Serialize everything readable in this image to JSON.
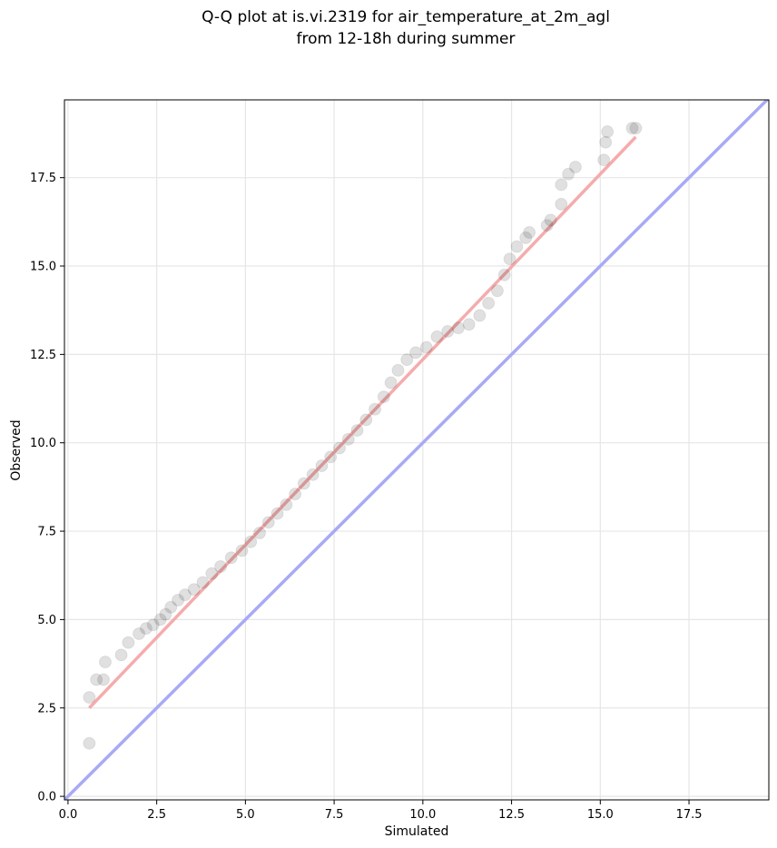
{
  "chart_data": {
    "type": "scatter",
    "title_line1": "Q-Q plot at is.vi.2319 for air_temperature_at_2m_agl",
    "title_line2": "from 12-18h during summer",
    "xlabel": "Simulated",
    "ylabel": "Observed",
    "xlim": [
      -0.1,
      19.75
    ],
    "ylim": [
      -0.1,
      19.7
    ],
    "x_ticks": [
      0.0,
      2.5,
      5.0,
      7.5,
      10.0,
      12.5,
      15.0,
      17.5
    ],
    "x_tick_labels": [
      "0.0",
      "2.5",
      "5.0",
      "7.5",
      "10.0",
      "12.5",
      "15.0",
      "17.5"
    ],
    "y_ticks": [
      0.0,
      2.5,
      5.0,
      7.5,
      10.0,
      12.5,
      15.0,
      17.5
    ],
    "y_tick_labels": [
      "0.0",
      "2.5",
      "5.0",
      "7.5",
      "10.0",
      "12.5",
      "15.0",
      "17.5"
    ],
    "grid": true,
    "series": [
      {
        "kind": "quantile_points",
        "color": "#000000",
        "points": [
          [
            0.6,
            1.5
          ],
          [
            0.6,
            2.8
          ],
          [
            0.8,
            3.3
          ],
          [
            1.0,
            3.3
          ],
          [
            1.05,
            3.8
          ],
          [
            1.5,
            4.0
          ],
          [
            1.7,
            4.35
          ],
          [
            2.0,
            4.6
          ],
          [
            2.2,
            4.75
          ],
          [
            2.4,
            4.85
          ],
          [
            2.6,
            5.0
          ],
          [
            2.75,
            5.15
          ],
          [
            2.9,
            5.35
          ],
          [
            3.1,
            5.55
          ],
          [
            3.3,
            5.7
          ],
          [
            3.55,
            5.85
          ],
          [
            3.8,
            6.05
          ],
          [
            4.05,
            6.3
          ],
          [
            4.3,
            6.5
          ],
          [
            4.6,
            6.75
          ],
          [
            4.9,
            6.95
          ],
          [
            5.15,
            7.2
          ],
          [
            5.4,
            7.45
          ],
          [
            5.65,
            7.75
          ],
          [
            5.9,
            8.0
          ],
          [
            6.15,
            8.25
          ],
          [
            6.4,
            8.55
          ],
          [
            6.65,
            8.85
          ],
          [
            6.9,
            9.1
          ],
          [
            7.15,
            9.35
          ],
          [
            7.4,
            9.6
          ],
          [
            7.65,
            9.85
          ],
          [
            7.9,
            10.1
          ],
          [
            8.15,
            10.35
          ],
          [
            8.4,
            10.65
          ],
          [
            8.65,
            10.95
          ],
          [
            8.9,
            11.3
          ],
          [
            9.1,
            11.7
          ],
          [
            9.3,
            12.05
          ],
          [
            9.55,
            12.35
          ],
          [
            9.8,
            12.55
          ],
          [
            10.1,
            12.7
          ],
          [
            10.4,
            13.0
          ],
          [
            10.7,
            13.15
          ],
          [
            11.0,
            13.25
          ],
          [
            11.3,
            13.35
          ],
          [
            11.6,
            13.6
          ],
          [
            11.85,
            13.95
          ],
          [
            12.1,
            14.3
          ],
          [
            12.3,
            14.75
          ],
          [
            12.45,
            15.2
          ],
          [
            12.65,
            15.55
          ],
          [
            12.9,
            15.8
          ],
          [
            13.0,
            15.95
          ],
          [
            13.5,
            16.15
          ],
          [
            13.6,
            16.3
          ],
          [
            13.9,
            16.75
          ],
          [
            13.9,
            17.3
          ],
          [
            14.1,
            17.6
          ],
          [
            14.3,
            17.8
          ],
          [
            15.1,
            18.0
          ],
          [
            15.15,
            18.5
          ],
          [
            15.2,
            18.8
          ],
          [
            15.9,
            18.9
          ],
          [
            16.0,
            18.9
          ]
        ]
      },
      {
        "kind": "fit_line",
        "color": "#f4a3a3",
        "x": [
          0.6,
          16.0
        ],
        "y": [
          2.5,
          18.65
        ]
      },
      {
        "kind": "identity_line",
        "color": "#a8aaf5",
        "x": [
          -0.1,
          19.75
        ],
        "y": [
          -0.1,
          19.75
        ]
      }
    ]
  }
}
